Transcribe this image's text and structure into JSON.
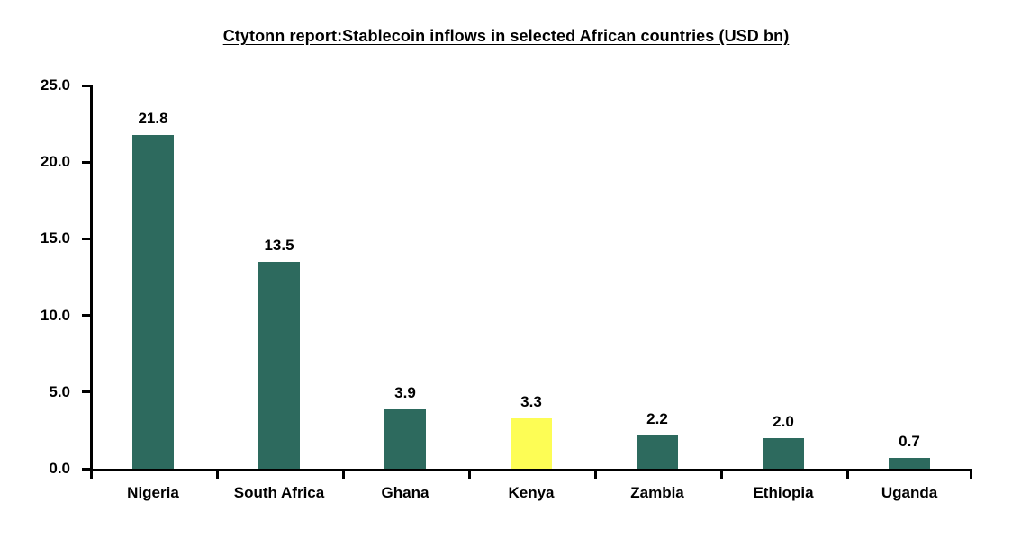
{
  "chart_data": {
    "type": "bar",
    "title": "Ctytonn report:Stablecoin inflows in selected African countries (USD bn)",
    "categories": [
      "Nigeria",
      "South Africa",
      "Ghana",
      "Kenya",
      "Zambia",
      "Ethiopia",
      "Uganda"
    ],
    "values": [
      21.8,
      13.5,
      3.9,
      3.3,
      2.2,
      2.0,
      0.7
    ],
    "value_labels": [
      "21.8",
      "13.5",
      "3.9",
      "3.3",
      "2.2",
      "2.0",
      "0.7"
    ],
    "ylim": [
      0,
      25
    ],
    "ytick_labels": [
      "0.0",
      "5.0",
      "10.0",
      "15.0",
      "20.0",
      "25.0"
    ],
    "ytick_values": [
      0,
      5,
      10,
      15,
      20,
      25
    ],
    "xlabel": "",
    "ylabel": "",
    "grid": false,
    "legend": null,
    "bar_color": "#2D6A5E",
    "highlight_category": "Kenya",
    "highlight_color": "#FDFD55",
    "axis_color": "#000000",
    "text_color": "#000000",
    "background_color": "#FFFFFF"
  }
}
